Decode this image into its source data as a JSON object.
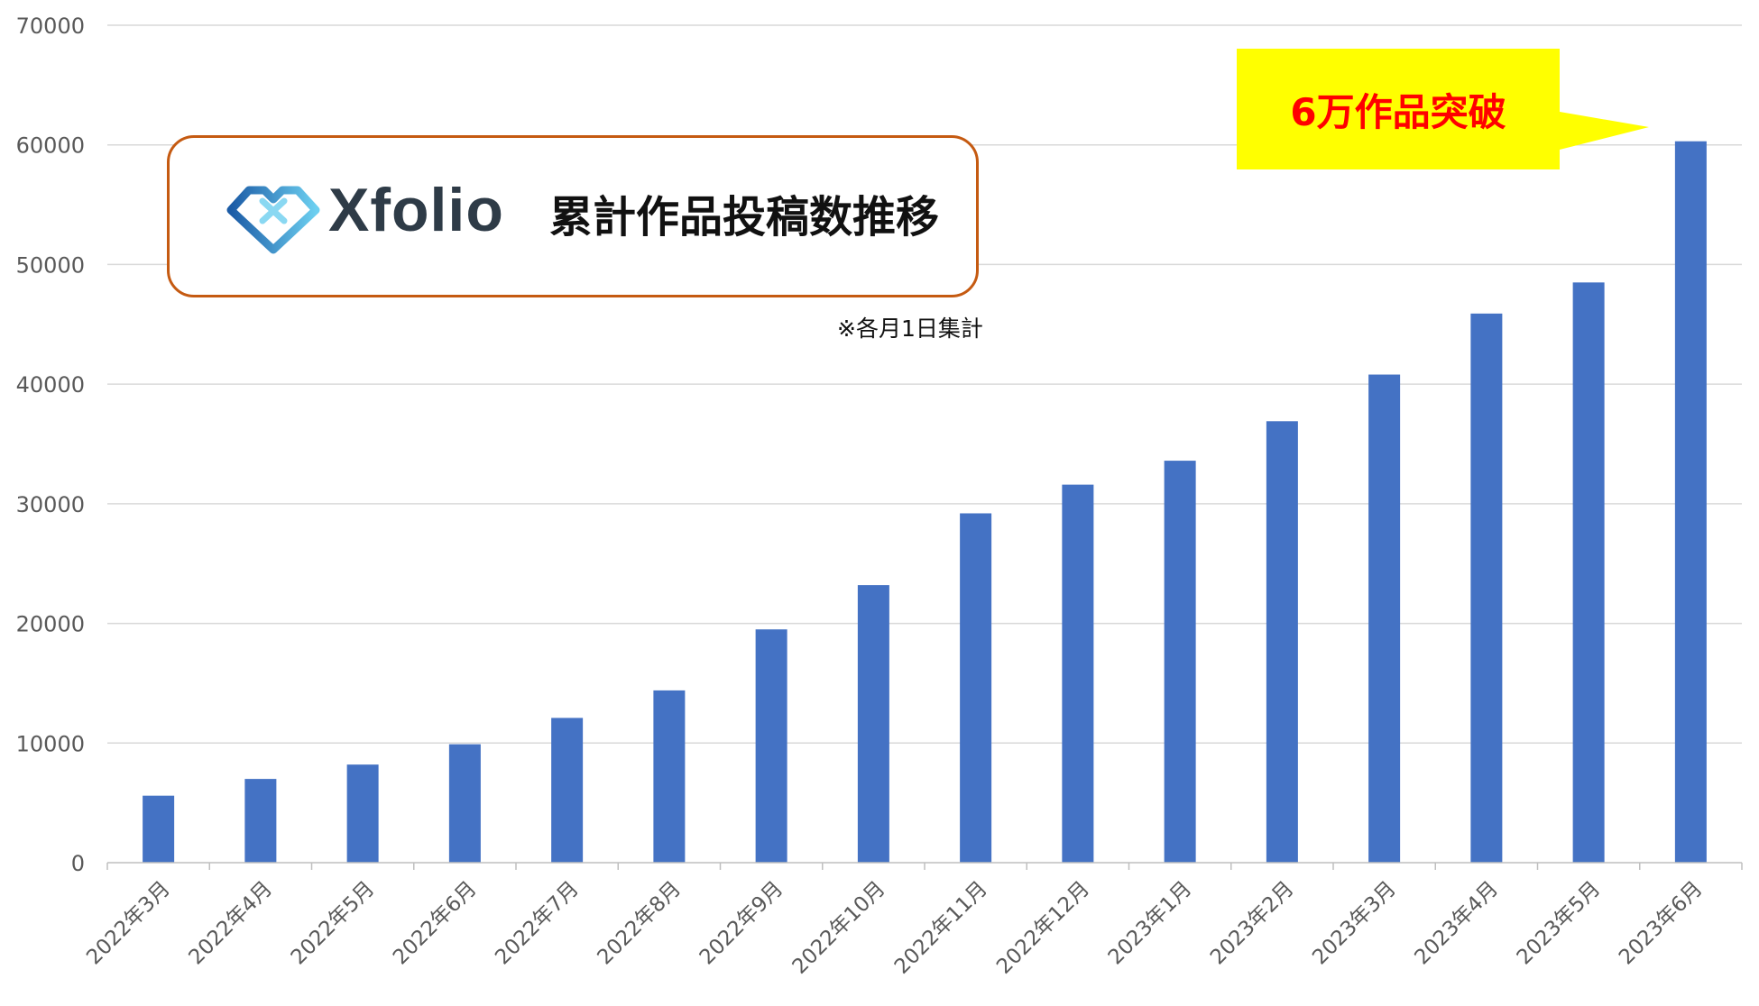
{
  "brand": {
    "logo_text": "Xfolio",
    "logo_icon": "xfolio-heart-icon",
    "border_color": "#C55A11"
  },
  "note": "※各月1日集計",
  "callout": {
    "text": "6万作品突破",
    "background": "#FFFF00",
    "text_color": "#FF0000"
  },
  "chart_data": {
    "type": "bar",
    "title": "累計作品投稿数推移",
    "categories": [
      "2022年3月",
      "2022年4月",
      "2022年5月",
      "2022年6月",
      "2022年7月",
      "2022年8月",
      "2022年9月",
      "2022年10月",
      "2022年11月",
      "2022年12月",
      "2023年1月",
      "2023年2月",
      "2023年3月",
      "2023年4月",
      "2023年5月",
      "2023年6月"
    ],
    "values": [
      5600,
      7000,
      8200,
      9900,
      12100,
      14400,
      19500,
      23200,
      29200,
      31600,
      33600,
      36900,
      40800,
      45900,
      48500,
      60300
    ],
    "ylim": [
      0,
      70000
    ],
    "yticks": [
      0,
      10000,
      20000,
      30000,
      40000,
      50000,
      60000,
      70000
    ],
    "grid": true,
    "legend": "none",
    "bar_color": "#4472C4"
  }
}
